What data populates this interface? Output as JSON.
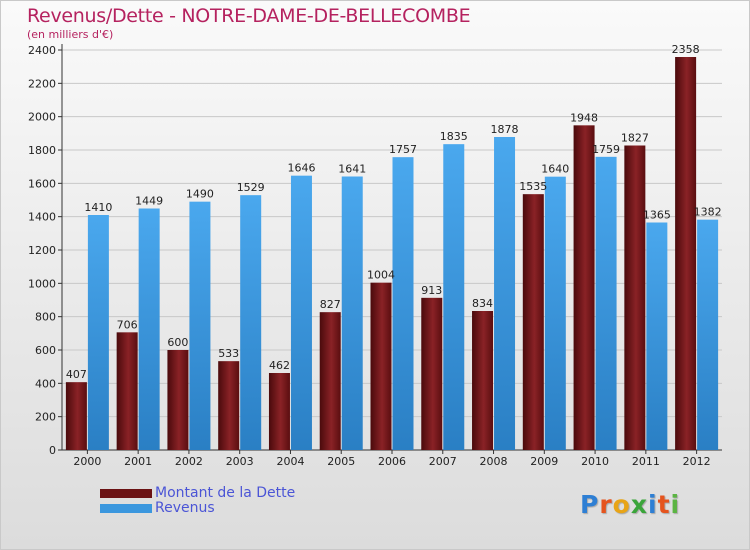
{
  "header": {
    "title": "Revenus/Dette - NOTRE-DAME-DE-BELLECOMBE",
    "subtitle": "(en milliers d'€)"
  },
  "legend": {
    "items": [
      {
        "label": "Montant de la Dette",
        "color": "#6b1214"
      },
      {
        "label": "Revenus",
        "color": "#3b97de"
      }
    ]
  },
  "logo": {
    "letters": [
      "P",
      "r",
      "o",
      "x",
      "i",
      "t",
      "i"
    ],
    "colors": [
      "#2e7fd4",
      "#e5541e",
      "#e8a417",
      "#3aa53a",
      "#2e7fd4",
      "#e5541e",
      "#5bb443"
    ]
  },
  "chart_data": {
    "type": "bar",
    "title": "Revenus/Dette - NOTRE-DAME-DE-BELLECOMBE",
    "subtitle": "(en milliers d'€)",
    "categories": [
      "2000",
      "2001",
      "2002",
      "2003",
      "2004",
      "2005",
      "2006",
      "2007",
      "2008",
      "2009",
      "2010",
      "2011",
      "2012"
    ],
    "series": [
      {
        "name": "Montant de la Dette",
        "color": "#6b1214",
        "values": [
          407,
          706,
          600,
          533,
          462,
          827,
          1004,
          913,
          834,
          1535,
          1948,
          1827,
          2358
        ],
        "labels": [
          "407",
          "706",
          "600",
          "533",
          "462",
          "827",
          "1004",
          "913",
          "834",
          "1535",
          "1948",
          "1827",
          "2358"
        ]
      },
      {
        "name": "Revenus",
        "color": "#3b97de",
        "values": [
          1410,
          1449,
          1490,
          1529,
          1646,
          1641,
          1757,
          1835,
          1878,
          1640,
          1759,
          1365,
          1382
        ],
        "labels": [
          "1410",
          "1449",
          "1490",
          "1529",
          "1646",
          "1641",
          "1757",
          "1835",
          "1878",
          "1640",
          "1759",
          "1365",
          "1382"
        ]
      }
    ],
    "ylim": [
      0,
      2400
    ],
    "yticks": [
      0,
      200,
      400,
      600,
      800,
      1000,
      1200,
      1400,
      1600,
      1800,
      2000,
      2200,
      2400
    ],
    "grid": true,
    "legend_position": "bottom-left"
  }
}
